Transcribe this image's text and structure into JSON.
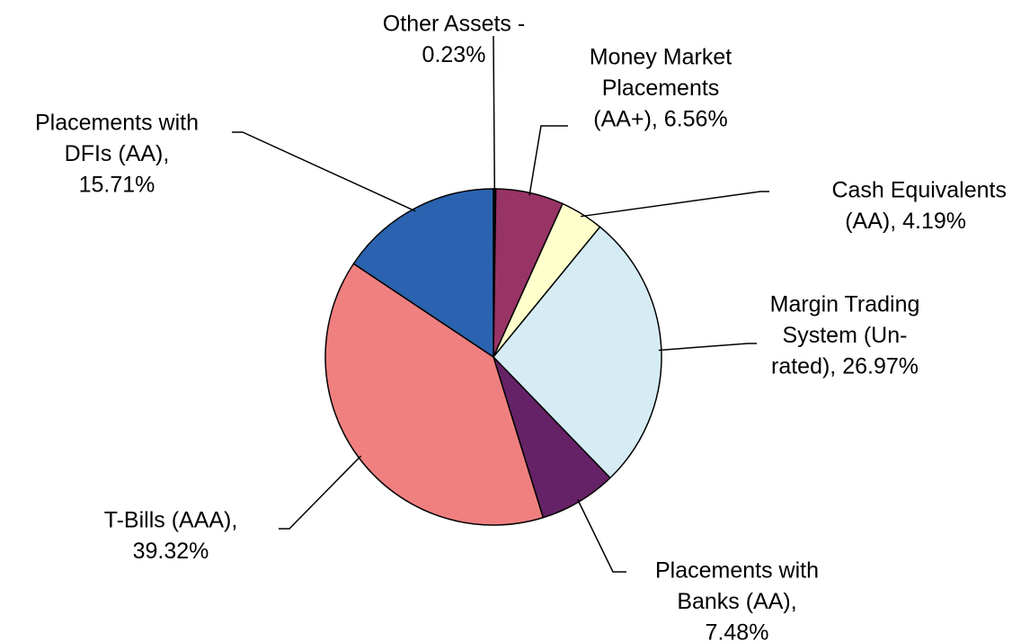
{
  "chart_data": {
    "type": "pie",
    "labels": [
      [
        "Other Assets  -",
        "0.23%"
      ],
      [
        "Money Market",
        "Placements",
        "(AA+), 6.56%"
      ],
      [
        "Cash Equivalents",
        "(AA), 4.19%"
      ],
      [
        "Margin Trading",
        "System (Un-",
        "rated), 26.97%"
      ],
      [
        "Placements with",
        "Banks (AA),",
        "7.48%"
      ],
      [
        "T-Bills (AAA),",
        "39.32%"
      ],
      [
        "Placements with",
        "DFIs (AA),",
        "15.71%"
      ]
    ],
    "values": [
      0.23,
      6.56,
      4.19,
      26.97,
      7.48,
      39.32,
      15.71
    ],
    "colors": [
      "#111111",
      "#983366",
      "#ffffcc",
      "#d5ecf4",
      "#662266",
      "#f08080",
      "#2b63b0"
    ]
  }
}
